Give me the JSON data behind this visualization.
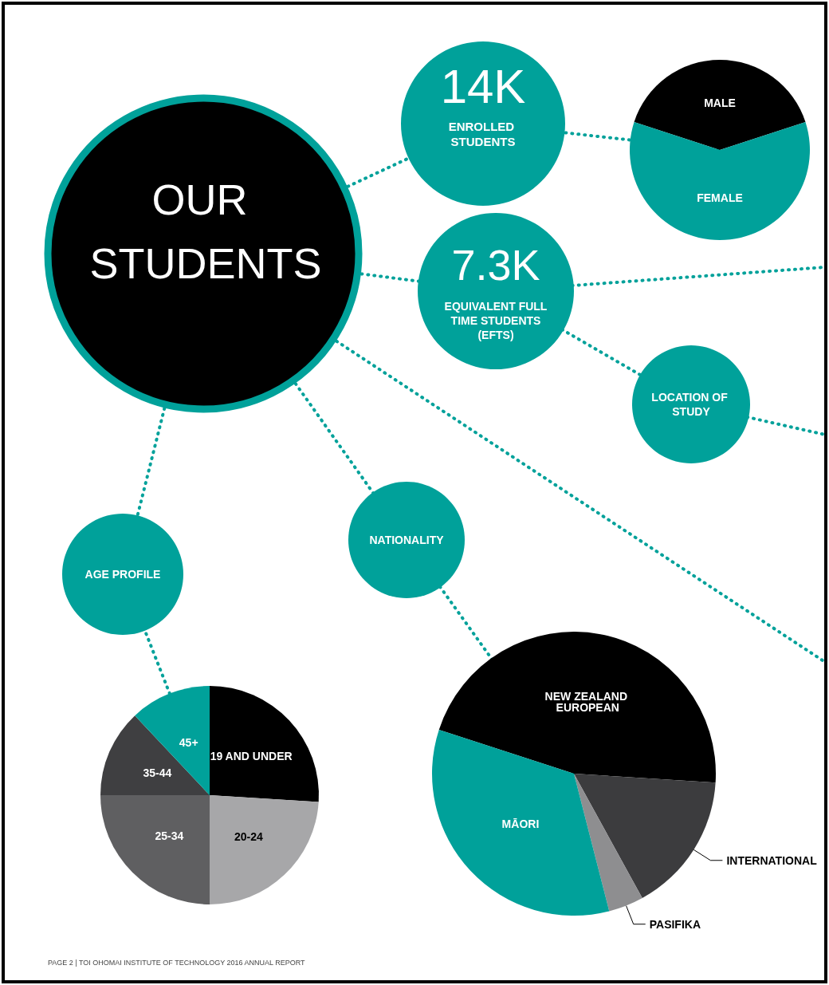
{
  "chart_data": [
    {
      "type": "other",
      "title": "OUR STUDENTS",
      "annotations": [
        "14K",
        "ENROLLED STUDENTS",
        "7.3K",
        "EQUIVALENT FULL TIME STUDENTS (EFTS)",
        "LOCATION OF STUDY",
        "NATIONALITY",
        "AGE PROFILE",
        "PAGE 2 | TOI OHOMAI INSTITUTE OF TECHNOLOGY 2016 ANNUAL REPORT"
      ]
    },
    {
      "type": "pie",
      "categories": [
        "MALE",
        "FEMALE"
      ],
      "values": [
        40,
        60
      ],
      "colors": [
        "#000000",
        "#00a19a"
      ]
    },
    {
      "type": "pie",
      "categories": [
        "19 AND UNDER",
        "20-24",
        "25-34",
        "35-44",
        "45+"
      ],
      "values": [
        26,
        24,
        25,
        13,
        12
      ],
      "colors": [
        "#000000",
        "#a7a7a9",
        "#5f5f61",
        "#3f3f41",
        "#00a19a"
      ]
    },
    {
      "type": "pie",
      "categories": [
        "NEW ZEALAND EUROPEAN",
        "INTERNATIONAL",
        "PASIFIKA",
        "MĀORI"
      ],
      "values": [
        46,
        16,
        4,
        34
      ],
      "colors": [
        "#000000",
        "#3c3c3e",
        "#8e8e90",
        "#00a19a"
      ]
    }
  ]
}
